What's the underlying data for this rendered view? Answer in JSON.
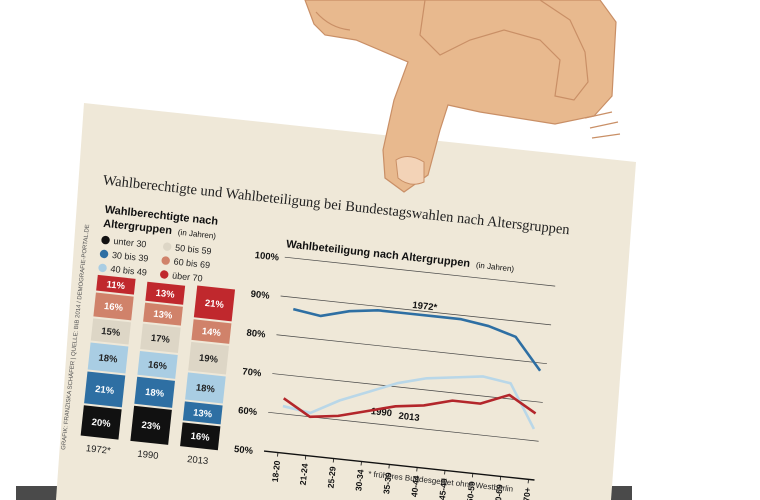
{
  "title": "Wahlberechtigte und Wahlbeteiligung bei Bundestagswahlen nach Altersgruppen",
  "credit": "GRAFIK: FRANZISKA SCHÄFER | QUELLE: BIB 2014 / DEMOGRAFIE-PORTAL.DE",
  "colors": {
    "paper": "#efe8d8",
    "ballot_box": "#4a4a4a",
    "skin": "#e8b98e",
    "skin_shadow": "#c98f66",
    "under30": "#111111",
    "30to39": "#2e6fa3",
    "40to49": "#a9cde3",
    "50to59": "#ddd6c6",
    "60to69": "#d0826a",
    "over70": "#c0282d",
    "line_1972": "#2e6fa3",
    "line_1990": "#b9d7e8",
    "line_2013": "#b3262b"
  },
  "chart_data": [
    {
      "type": "bar",
      "title": "Wahlberechtigte nach",
      "subtitle_bold": "Altergruppen",
      "subtitle_note": "(in Jahren)",
      "stacked": true,
      "categories": [
        "1972*",
        "1990",
        "2013"
      ],
      "legend": [
        {
          "key": "under30",
          "label": "unter 30"
        },
        {
          "key": "30to39",
          "label": "30 bis 39"
        },
        {
          "key": "40to49",
          "label": "40 bis 49"
        },
        {
          "key": "50to59",
          "label": "50 bis 59"
        },
        {
          "key": "60to69",
          "label": "60 bis 69"
        },
        {
          "key": "over70",
          "label": "über 70"
        }
      ],
      "series": [
        {
          "key": "under30",
          "name": "unter 30",
          "values": [
            20,
            23,
            16
          ]
        },
        {
          "key": "30to39",
          "name": "30 bis 39",
          "values": [
            21,
            18,
            13
          ]
        },
        {
          "key": "40to49",
          "name": "40 bis 49",
          "values": [
            18,
            16,
            18
          ]
        },
        {
          "key": "50to59",
          "name": "50 bis 59",
          "values": [
            15,
            17,
            19
          ]
        },
        {
          "key": "60to69",
          "name": "60 bis 69",
          "values": [
            16,
            13,
            14
          ]
        },
        {
          "key": "over70",
          "name": "über 70",
          "values": [
            11,
            13,
            21
          ]
        }
      ],
      "value_labels": [
        [
          "20%",
          "21%",
          "18%",
          "15%",
          "16%",
          "11%"
        ],
        [
          "23%",
          "18%",
          "16%",
          "17%",
          "13%",
          "13%"
        ],
        [
          "16%",
          "13%",
          "18%",
          "19%",
          "14%",
          "21%"
        ]
      ]
    },
    {
      "type": "line",
      "title": "Wahlbeteiligung nach Altergruppen",
      "title_note": "(in Jahren)",
      "x": [
        "18-20",
        "21-24",
        "25-29",
        "30-34",
        "35-39",
        "40-44",
        "45-49",
        "50-59",
        "60-69",
        "70+"
      ],
      "ylim": [
        50,
        100
      ],
      "yticks": [
        100,
        90,
        80,
        70,
        60,
        50
      ],
      "ytick_labels": [
        "100%",
        "90%",
        "80%",
        "70%",
        "60%",
        "50%"
      ],
      "series": [
        {
          "key": "line_1972",
          "name": "1972*",
          "values": [
            87,
            86,
            88,
            89,
            89,
            89,
            89,
            88,
            86,
            78
          ]
        },
        {
          "key": "line_1990",
          "name": "1990",
          "values": [
            62,
            61,
            65,
            68,
            71,
            73,
            74,
            75,
            74,
            63
          ]
        },
        {
          "key": "line_2013",
          "name": "2013",
          "values": [
            64,
            60,
            61,
            63,
            65,
            66,
            68,
            68,
            71,
            67
          ]
        }
      ],
      "footnote": "* früheres Bundesgebiet ohne Westberlin"
    }
  ]
}
